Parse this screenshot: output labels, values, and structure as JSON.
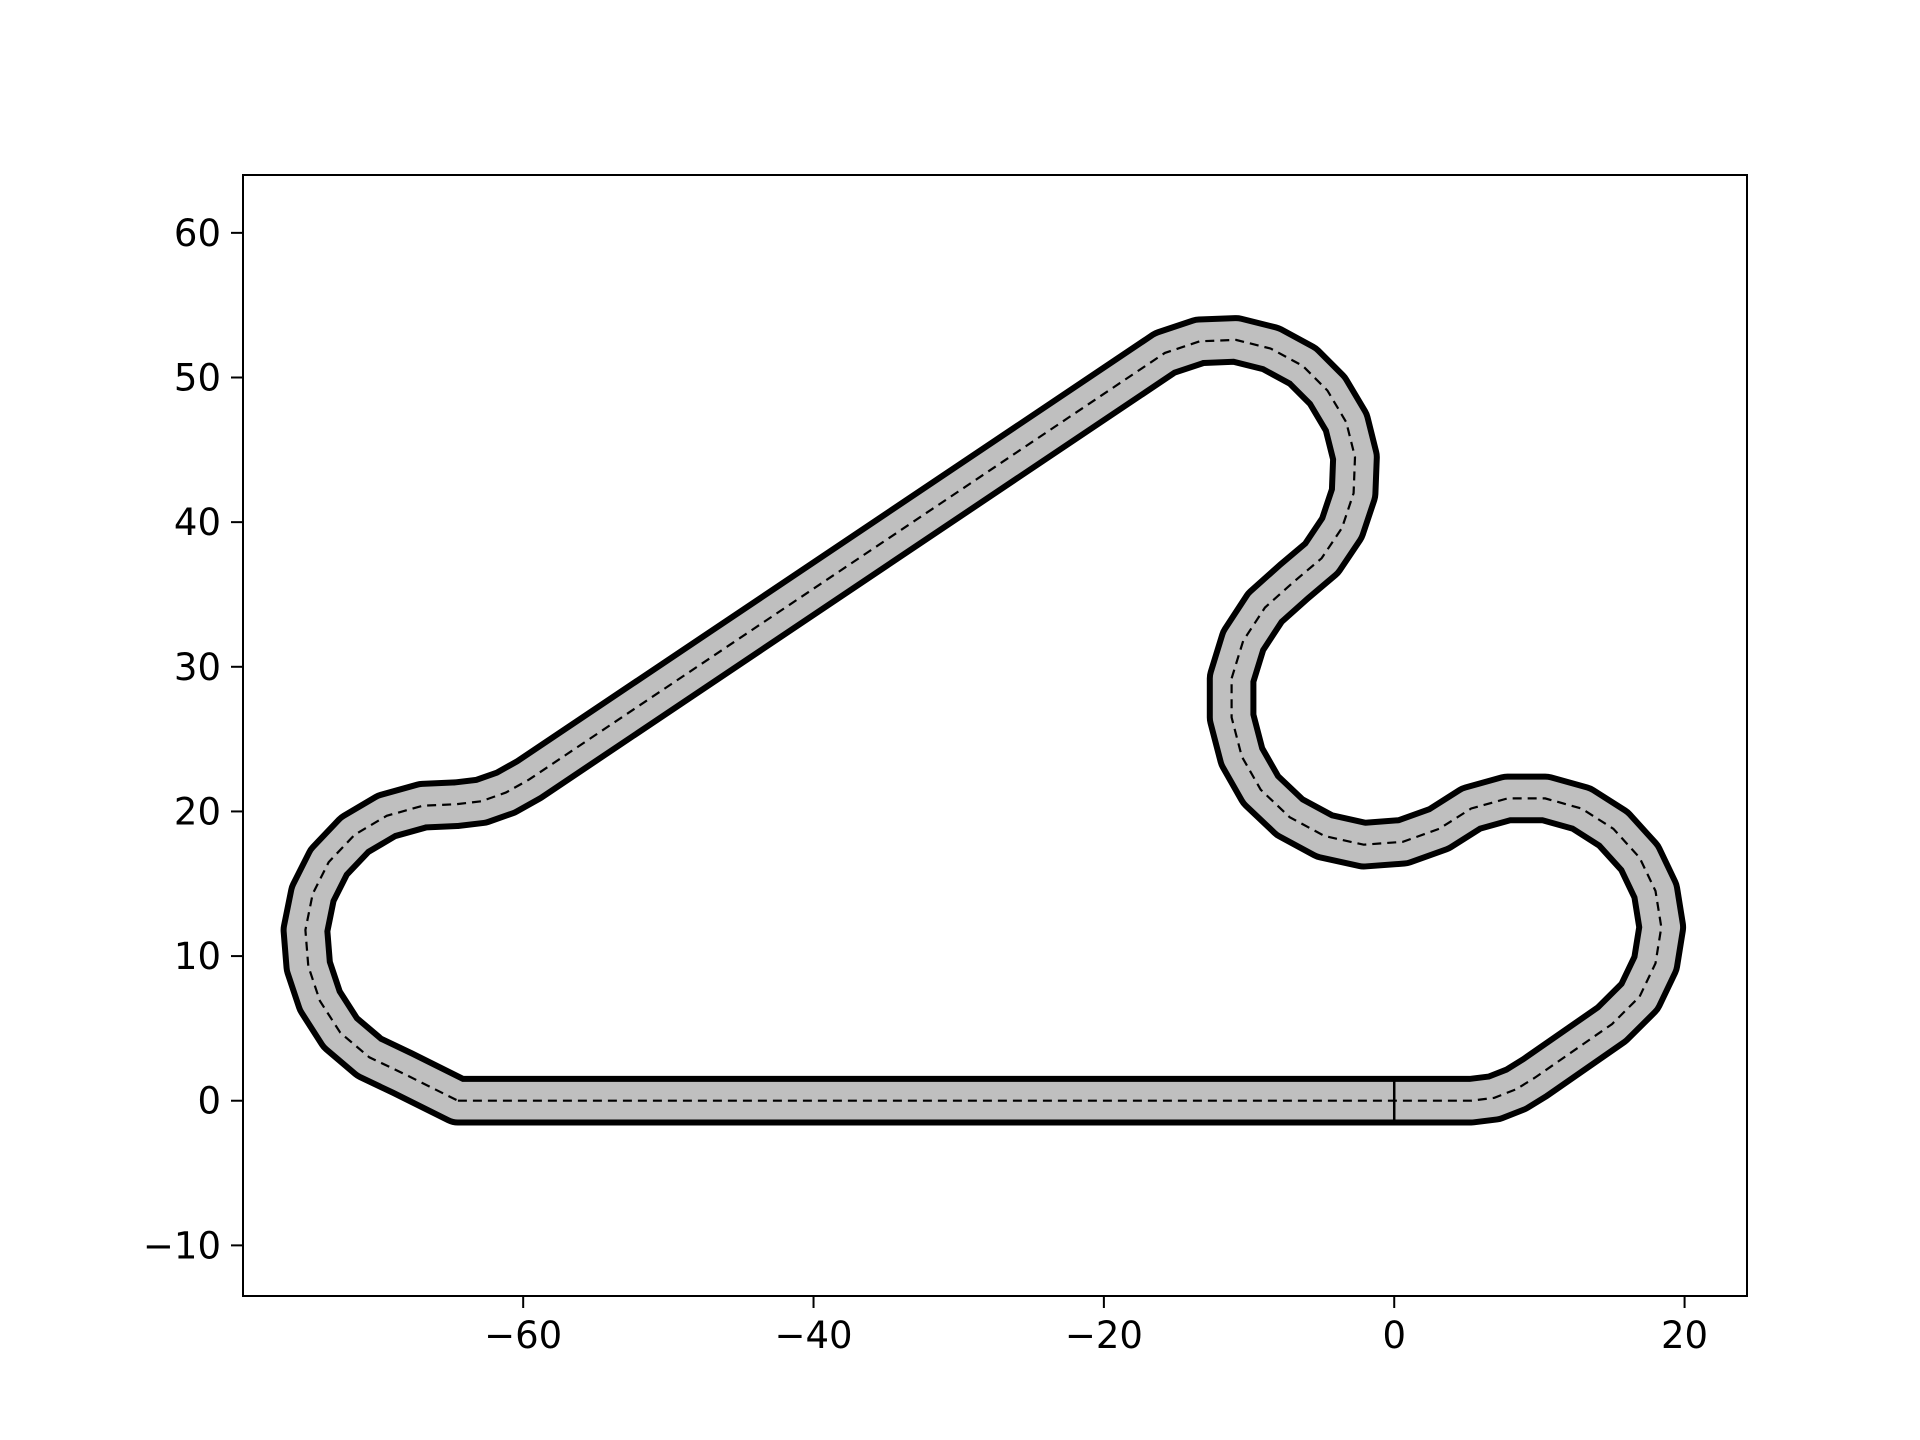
{
  "chart_data": {
    "type": "line",
    "title": "",
    "xlabel": "",
    "ylabel": "",
    "xlim": [
      -79.3,
      24.3
    ],
    "ylim": [
      -13.5,
      64.0
    ],
    "x_ticks": [
      -60,
      -40,
      -20,
      0,
      20
    ],
    "x_tick_labels": [
      "−60",
      "−40",
      "−20",
      "0",
      "20"
    ],
    "y_ticks": [
      -10,
      0,
      10,
      20,
      30,
      40,
      50,
      60
    ],
    "y_tick_labels": [
      "−10",
      "0",
      "10",
      "20",
      "30",
      "40",
      "50",
      "60"
    ],
    "grid": false,
    "legend": "none",
    "track_width": 3.0,
    "centerline": [
      [
        -64.5,
        0.0
      ],
      [
        5.3,
        0.0
      ],
      [
        6.9,
        0.2
      ],
      [
        8.4,
        0.8
      ],
      [
        9.7,
        1.6
      ],
      [
        15.0,
        5.3
      ],
      [
        16.9,
        7.2
      ],
      [
        18.0,
        9.5
      ],
      [
        18.4,
        12.0
      ],
      [
        18.0,
        14.5
      ],
      [
        16.9,
        16.8
      ],
      [
        15.1,
        18.8
      ],
      [
        12.9,
        20.2
      ],
      [
        10.4,
        20.9
      ],
      [
        7.8,
        20.9
      ],
      [
        5.3,
        20.2
      ],
      [
        3.1,
        18.8
      ],
      [
        0.6,
        17.9
      ],
      [
        -2.1,
        17.7
      ],
      [
        -4.8,
        18.3
      ],
      [
        -7.2,
        19.6
      ],
      [
        -9.2,
        21.5
      ],
      [
        -10.5,
        23.8
      ],
      [
        -11.2,
        26.5
      ],
      [
        -11.2,
        29.2
      ],
      [
        -10.4,
        31.8
      ],
      [
        -8.9,
        34.1
      ],
      [
        -6.9,
        35.9
      ],
      [
        -5.0,
        37.5
      ],
      [
        -3.6,
        39.6
      ],
      [
        -2.8,
        42.0
      ],
      [
        -2.7,
        44.5
      ],
      [
        -3.3,
        46.9
      ],
      [
        -4.6,
        49.1
      ],
      [
        -6.3,
        50.8
      ],
      [
        -8.5,
        52.0
      ],
      [
        -10.9,
        52.6
      ],
      [
        -13.4,
        52.5
      ],
      [
        -15.8,
        51.7
      ],
      [
        -59.6,
        22.2
      ],
      [
        -61.2,
        21.3
      ],
      [
        -62.9,
        20.7
      ],
      [
        -64.6,
        20.5
      ],
      [
        -66.9,
        20.4
      ],
      [
        -69.4,
        19.7
      ],
      [
        -71.6,
        18.4
      ],
      [
        -73.4,
        16.5
      ],
      [
        -74.5,
        14.3
      ],
      [
        -75.0,
        11.8
      ],
      [
        -74.8,
        9.3
      ],
      [
        -74.0,
        6.9
      ],
      [
        -72.6,
        4.7
      ],
      [
        -70.6,
        3.0
      ],
      [
        -68.3,
        1.9
      ],
      [
        -64.5,
        0.0
      ]
    ],
    "start_line_x": 0,
    "colors": {
      "track_fill": "#bfbfbf",
      "edge": "#000000",
      "centerline": "#000000",
      "axes": "#000000",
      "background": "#ffffff"
    }
  }
}
